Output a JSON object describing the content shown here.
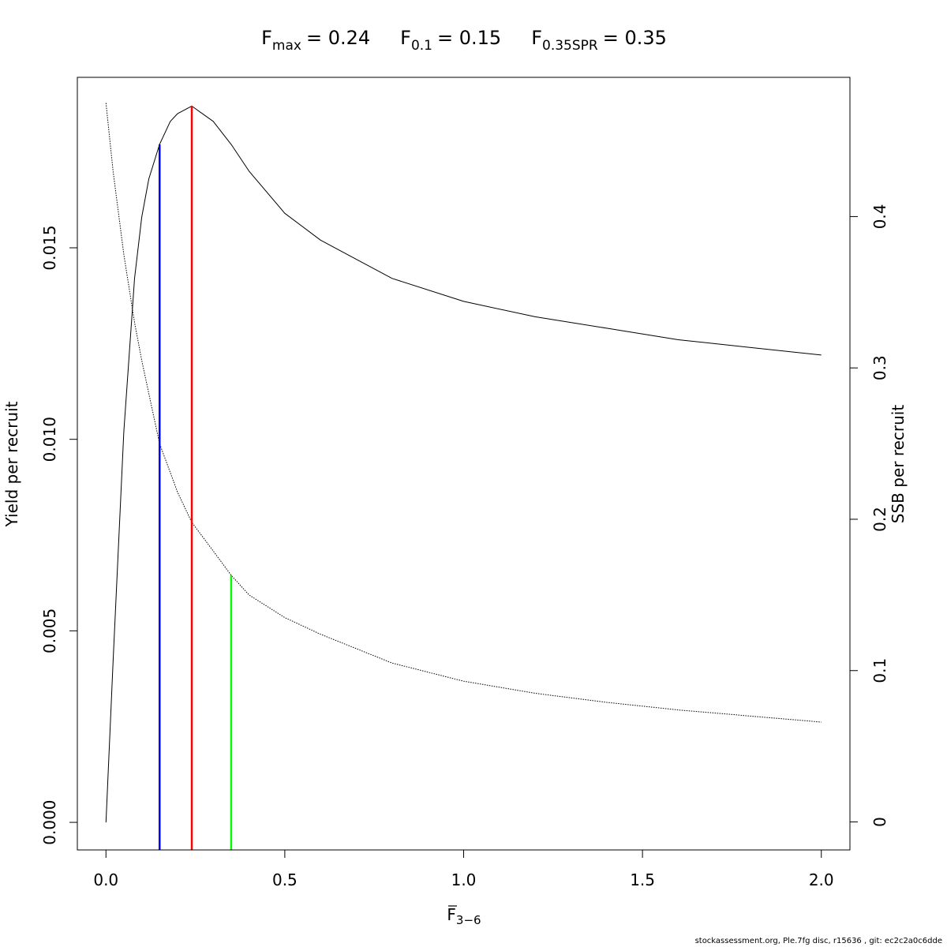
{
  "chart_data": {
    "type": "line",
    "title_parts": [
      {
        "var": "F",
        "sub": "max",
        "value": "= 0.24"
      },
      {
        "var": "F",
        "sub": "0.1",
        "value": "= 0.15"
      },
      {
        "var": "F",
        "sub": "0.35SPR",
        "value": "= 0.35"
      }
    ],
    "xlabel": {
      "var": "F",
      "sub": "3−6"
    },
    "ylabel_left": "Yield per recruit",
    "ylabel_right": "SSB per recruit",
    "xlim": [
      -0.08,
      2.08
    ],
    "ylim_left": [
      -0.00072,
      0.01945
    ],
    "ylim_right": [
      -0.0185,
      0.492
    ],
    "x_ticks": [
      0,
      0.5,
      1,
      1.5,
      2
    ],
    "x_tick_labels": [
      "0.0",
      "0.5",
      "1.0",
      "1.5",
      "2.0"
    ],
    "y_left_ticks": [
      0,
      0.005,
      0.01,
      0.015
    ],
    "y_left_tick_labels": [
      "0.000",
      "0.005",
      "0.010",
      "0.015"
    ],
    "y_right_ticks": [
      0,
      0.1,
      0.2,
      0.3,
      0.4
    ],
    "y_right_tick_labels": [
      "0",
      "0.1",
      "0.2",
      "0.3",
      "0.4"
    ],
    "series": [
      {
        "axis": "left",
        "style": "solid",
        "color": "#000000",
        "x": [
          0,
          0.02,
          0.05,
          0.08,
          0.1,
          0.12,
          0.15,
          0.18,
          0.2,
          0.24,
          0.3,
          0.35,
          0.4,
          0.5,
          0.6,
          0.7,
          0.8,
          1.0,
          1.2,
          1.4,
          1.6,
          1.8,
          2.0
        ],
        "values": [
          0,
          0.0042,
          0.0102,
          0.0142,
          0.0158,
          0.0168,
          0.0177,
          0.0183,
          0.0185,
          0.0187,
          0.0183,
          0.0177,
          0.017,
          0.0159,
          0.0152,
          0.0147,
          0.0142,
          0.0136,
          0.0132,
          0.0129,
          0.0126,
          0.0124,
          0.0122
        ]
      },
      {
        "axis": "right",
        "style": "dotted",
        "color": "#000000",
        "x": [
          0,
          0.02,
          0.05,
          0.08,
          0.1,
          0.12,
          0.15,
          0.2,
          0.24,
          0.3,
          0.35,
          0.4,
          0.5,
          0.6,
          0.8,
          1.0,
          1.2,
          1.4,
          1.6,
          1.8,
          2.0
        ],
        "values": [
          0.475,
          0.43,
          0.375,
          0.33,
          0.305,
          0.283,
          0.25,
          0.218,
          0.198,
          0.179,
          0.163,
          0.15,
          0.135,
          0.124,
          0.105,
          0.093,
          0.085,
          0.079,
          0.074,
          0.07,
          0.066
        ]
      }
    ],
    "reference_lines": [
      {
        "name": "F0.1",
        "x": 0.15,
        "y_left_top": 0.0177,
        "color": "#0000ff"
      },
      {
        "name": "Fmax",
        "x": 0.24,
        "y_left_top": 0.0187,
        "color": "#ff0000"
      },
      {
        "name": "F0.35SPR",
        "x": 0.35,
        "y_right_top": 0.163,
        "color": "#00ff00"
      }
    ]
  },
  "footer": "stockassessment.org, Ple.7fg  disc, r15636 , git: ec2c2a0c6dde"
}
